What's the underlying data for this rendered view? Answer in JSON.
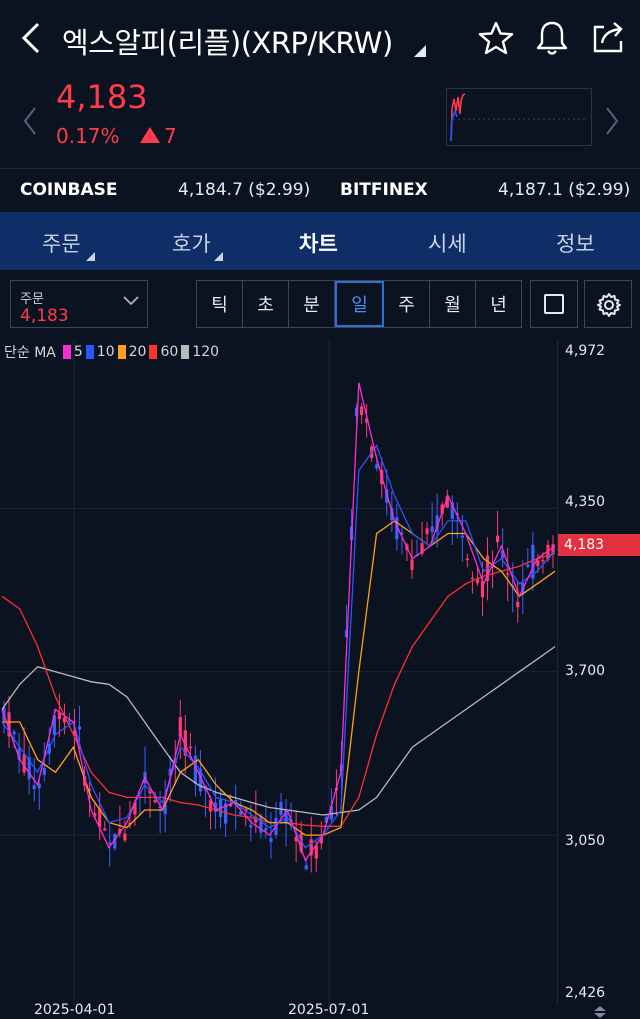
{
  "header": {
    "title": "엑스알피(리플)(XRP/KRW)",
    "icons": [
      "back-icon",
      "star-icon",
      "bell-icon",
      "share-icon"
    ]
  },
  "quote": {
    "price": "4,183",
    "change_pct": "0.17%",
    "change_amt": "7",
    "color_up": "#ff3b4c"
  },
  "exchanges": [
    {
      "name": "COINBASE",
      "value": "4,184.7 ($2.99)"
    },
    {
      "name": "BITFINEX",
      "value": "4,187.1 ($2.99)"
    }
  ],
  "tabs": [
    {
      "label": "주문",
      "active": false
    },
    {
      "label": "호가",
      "active": false
    },
    {
      "label": "차트",
      "active": true
    },
    {
      "label": "시세",
      "active": false
    },
    {
      "label": "정보",
      "active": false
    }
  ],
  "toolbar": {
    "order_label": "주문",
    "order_price": "4,183",
    "periods": [
      "틱",
      "초",
      "분",
      "일",
      "주",
      "월",
      "년"
    ],
    "selected_period": "일"
  },
  "legend": {
    "prefix": "단순 MA",
    "items": [
      {
        "label": "5",
        "color": "#ff2bd6"
      },
      {
        "label": "10",
        "color": "#2a56ff"
      },
      {
        "label": "20",
        "color": "#ffa020"
      },
      {
        "label": "60",
        "color": "#ff3030"
      },
      {
        "label": "120",
        "color": "#b9b9b9"
      }
    ]
  },
  "chart_data": {
    "type": "line",
    "title": "",
    "y_ticks": [
      "4,972",
      "4,350",
      "3,700",
      "3,050",
      "2,426"
    ],
    "x_ticks": [
      "2025-04-01",
      "2025-07-01"
    ],
    "current_price_label": "4,183",
    "ylim": [
      2426,
      4972
    ],
    "grid": true,
    "series": [
      {
        "name": "5",
        "color": "#ff2bd6",
        "values": [
          3550,
          3350,
          3250,
          3550,
          3500,
          3150,
          3000,
          3100,
          3280,
          3150,
          3450,
          3300,
          3150,
          3180,
          3100,
          3050,
          3150,
          2950,
          3050,
          3300,
          4850,
          4550,
          4300,
          4150,
          4200,
          4400,
          4250,
          4050,
          4200,
          4000,
          4150,
          4200
        ]
      },
      {
        "name": "10",
        "color": "#2a56ff",
        "values": [
          3500,
          3400,
          3300,
          3450,
          3500,
          3250,
          3100,
          3120,
          3250,
          3180,
          3400,
          3320,
          3200,
          3180,
          3130,
          3080,
          3120,
          3000,
          3050,
          3150,
          4500,
          4600,
          4400,
          4250,
          4200,
          4300,
          4300,
          4100,
          4150,
          4050,
          4100,
          4180
        ]
      },
      {
        "name": "20",
        "color": "#ffa020",
        "values": [
          3500,
          3500,
          3350,
          3300,
          3400,
          3200,
          3100,
          3080,
          3150,
          3150,
          3300,
          3350,
          3250,
          3180,
          3150,
          3100,
          3100,
          3050,
          3050,
          3080,
          3700,
          4250,
          4300,
          4250,
          4200,
          4250,
          4250,
          4150,
          4100,
          4000,
          4050,
          4100
        ]
      },
      {
        "name": "60",
        "color": "#ff3030",
        "values": [
          4000,
          3950,
          3800,
          3600,
          3450,
          3300,
          3220,
          3200,
          3200,
          3200,
          3180,
          3170,
          3150,
          3130,
          3120,
          3100,
          3100,
          3090,
          3085,
          3085,
          3200,
          3450,
          3650,
          3800,
          3900,
          4000,
          4050,
          4080,
          4100,
          4120,
          4150,
          4170
        ]
      },
      {
        "name": "120",
        "color": "#b9b9b9",
        "values": [
          3550,
          3650,
          3720,
          3700,
          3680,
          3660,
          3650,
          3600,
          3500,
          3400,
          3300,
          3250,
          3220,
          3200,
          3180,
          3160,
          3150,
          3140,
          3130,
          3140,
          3150,
          3200,
          3300,
          3400,
          3450,
          3500,
          3550,
          3600,
          3650,
          3700,
          3750,
          3800
        ]
      }
    ]
  }
}
